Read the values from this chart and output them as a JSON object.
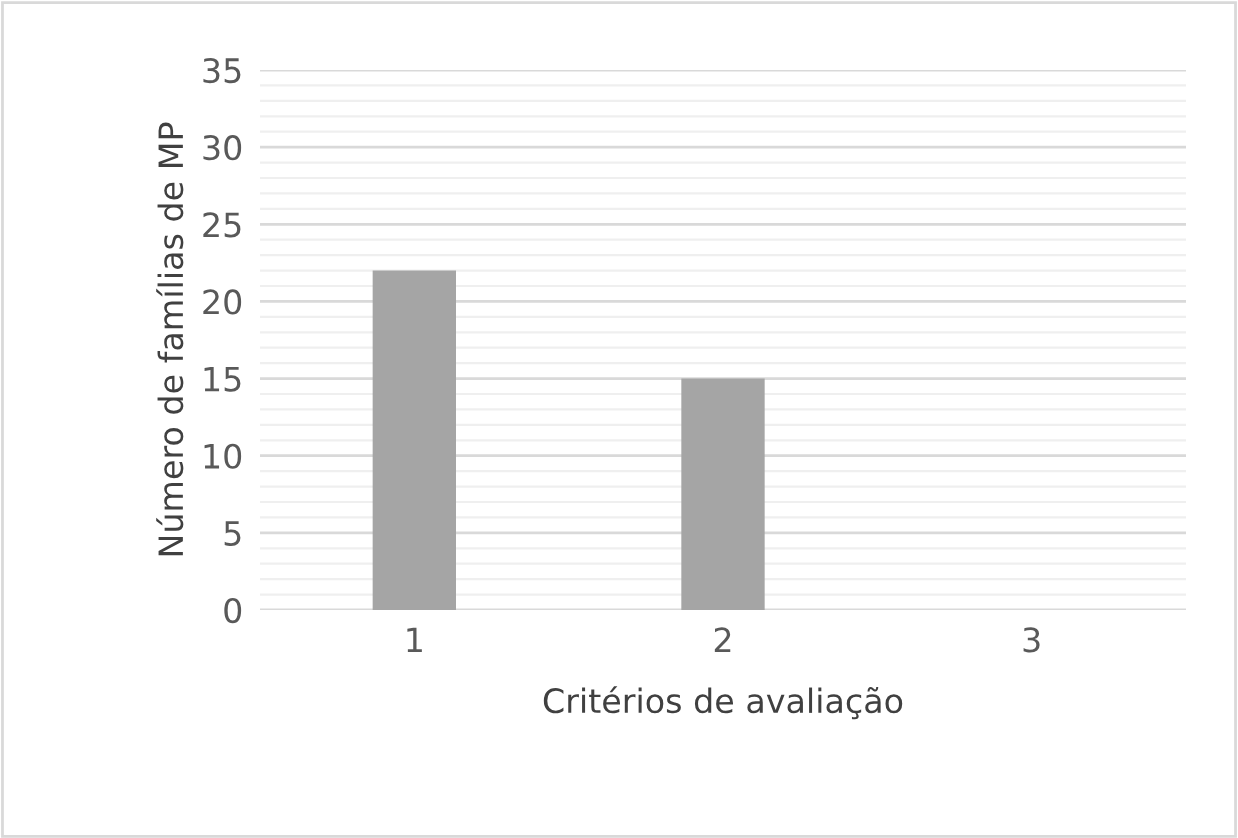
{
  "chart_data": {
    "type": "bar",
    "xlabel": "Critérios de avaliação",
    "ylabel": "Número de famílias de MP",
    "categories": [
      "1",
      "2",
      "3"
    ],
    "values": [
      22,
      15,
      0
    ],
    "color": "#a5a5a5",
    "ylim": [
      0,
      35
    ],
    "yticks": [
      0,
      5,
      10,
      15,
      20,
      25,
      30,
      35
    ],
    "grid": "y"
  }
}
